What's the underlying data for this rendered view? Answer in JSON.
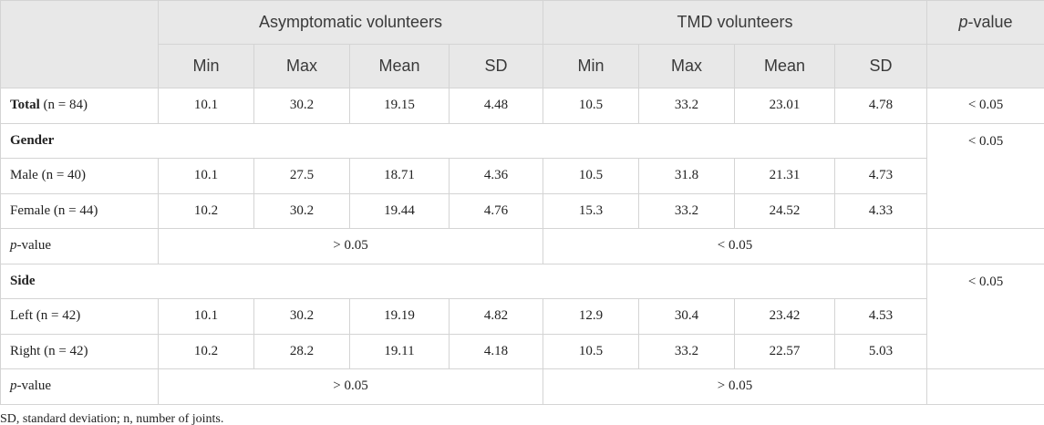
{
  "header": {
    "groups": [
      "Asymptomatic volunteers",
      "TMD volunteers"
    ],
    "p_value": {
      "italic": "p",
      "text": "-value"
    },
    "columns": [
      "Min",
      "Max",
      "Mean",
      "SD",
      "Min",
      "Max",
      "Mean",
      "SD"
    ]
  },
  "table": {
    "total": {
      "label": "Total",
      "n": "(n = 84)",
      "values": [
        10.1,
        30.2,
        19.15,
        4.48,
        10.5,
        33.2,
        23.01,
        4.78
      ],
      "p": "˂ 0.05"
    },
    "sections": [
      {
        "title": "Gender",
        "p": "˂ 0.05",
        "rows": [
          {
            "label": "Male (n = 40)",
            "values": [
              10.1,
              27.5,
              18.71,
              4.36,
              10.5,
              31.8,
              21.31,
              4.73
            ]
          },
          {
            "label": "Female (n = 44)",
            "values": [
              10.2,
              30.2,
              19.44,
              4.76,
              15.3,
              33.2,
              24.52,
              4.33
            ]
          }
        ],
        "p_row": {
          "italic": "p",
          "text": "-value",
          "groups": [
            "˃ 0.05",
            "˂ 0.05"
          ]
        }
      },
      {
        "title": "Side",
        "p": "˂ 0.05",
        "rows": [
          {
            "label": "Left (n = 42)",
            "values": [
              10.1,
              30.2,
              19.19,
              4.82,
              12.9,
              30.4,
              23.42,
              4.53
            ]
          },
          {
            "label": "Right (n = 42)",
            "values": [
              10.2,
              28.2,
              19.11,
              4.18,
              10.5,
              33.2,
              22.57,
              5.03
            ]
          }
        ],
        "p_row": {
          "italic": "p",
          "text": "-value",
          "groups": [
            "˃ 0.05",
            "˃ 0.05"
          ]
        }
      }
    ]
  },
  "footnote": "SD, standard deviation; n, number of joints."
}
